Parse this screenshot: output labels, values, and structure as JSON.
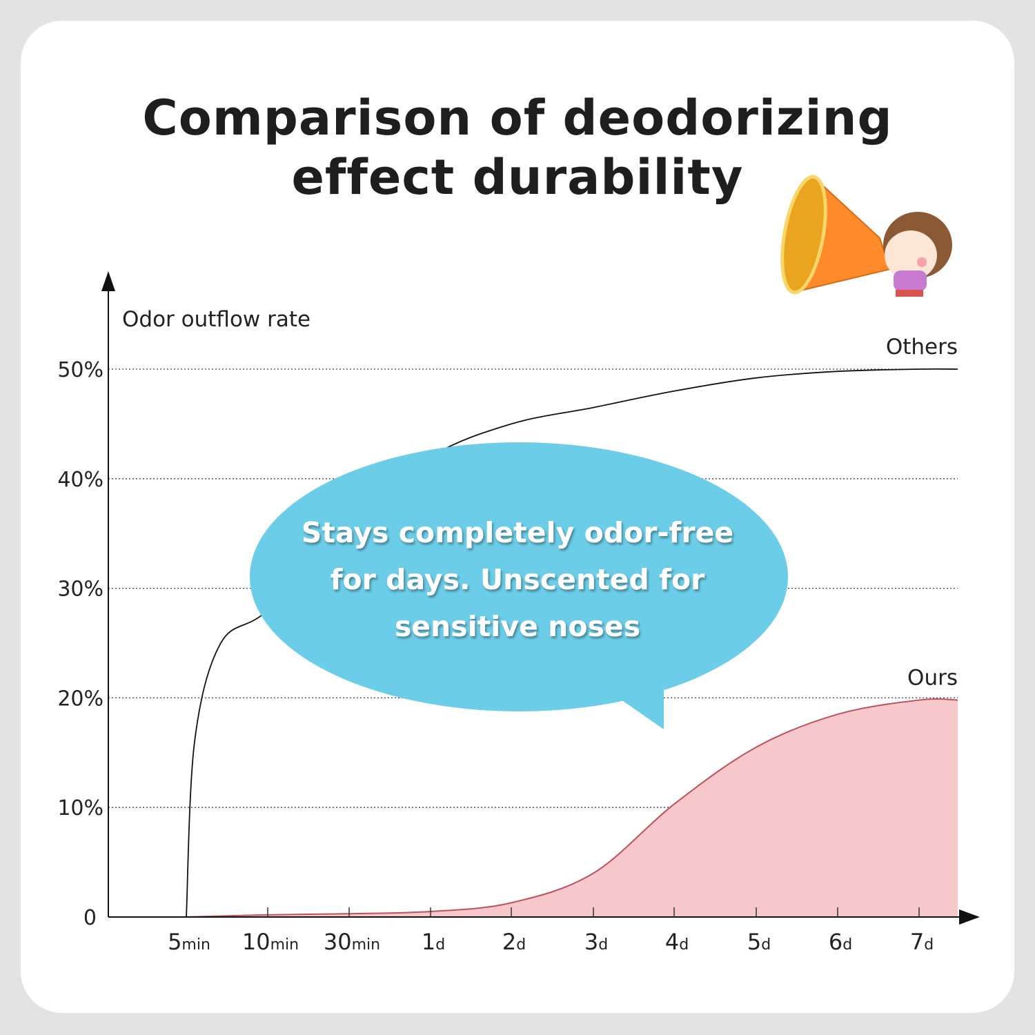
{
  "title_line1": "Comparison of deodorizing",
  "title_line2": "effect durability",
  "callout": "Stays completely odor-free for days. Unscented for sensitive noses",
  "illustration": "girl-with-megaphone",
  "chart_data": {
    "type": "line",
    "title": "Comparison of deodorizing effect durability",
    "ylabel": "Odor outflow rate",
    "xlabel": "",
    "categories": [
      {
        "num": "5",
        "unit": "min"
      },
      {
        "num": "10",
        "unit": "min"
      },
      {
        "num": "30",
        "unit": "min"
      },
      {
        "num": "1",
        "unit": "d"
      },
      {
        "num": "2",
        "unit": "d"
      },
      {
        "num": "3",
        "unit": "d"
      },
      {
        "num": "4",
        "unit": "d"
      },
      {
        "num": "5",
        "unit": "d"
      },
      {
        "num": "6",
        "unit": "d"
      },
      {
        "num": "7",
        "unit": "d"
      }
    ],
    "yticks": [
      "0",
      "10%",
      "20%",
      "30%",
      "40%",
      "50%"
    ],
    "ylim": [
      0,
      50
    ],
    "grid": "dotted horizontal",
    "series": [
      {
        "name": "Others",
        "color": "#111111",
        "fill": "none",
        "values": [
          0,
          28,
          36,
          42,
          45,
          46.5,
          48,
          49.2,
          49.8,
          50
        ]
      },
      {
        "name": "Ours",
        "color": "#c0505a",
        "fill": "#f7c8cb",
        "values": [
          0,
          0.2,
          0.3,
          0.5,
          1.3,
          4,
          10.3,
          15.5,
          18.5,
          19.8
        ]
      }
    ]
  }
}
